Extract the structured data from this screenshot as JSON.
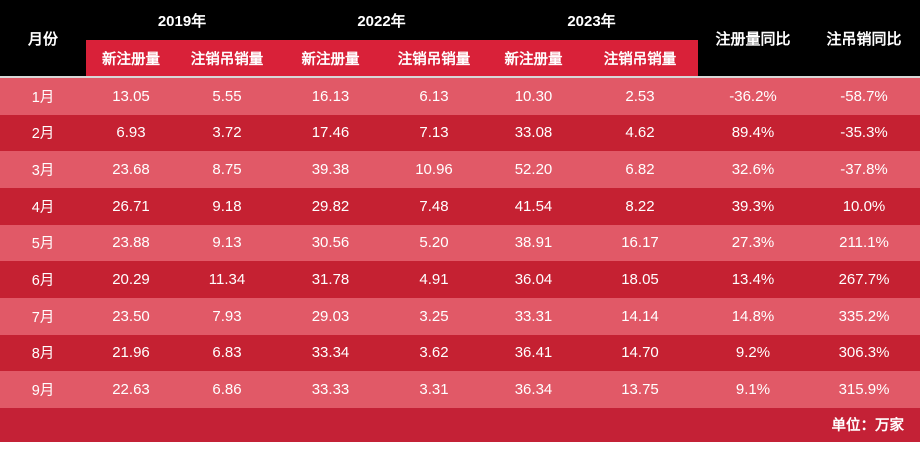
{
  "chart_data": {
    "type": "table",
    "unit_note": "单位：万家",
    "header": {
      "month": "月份",
      "year_groups": [
        {
          "year": "2019年",
          "subcolumns": [
            "新注册量",
            "注销吊销量"
          ]
        },
        {
          "year": "2022年",
          "subcolumns": [
            "新注册量",
            "注销吊销量"
          ]
        },
        {
          "year": "2023年",
          "subcolumns": [
            "新注册量",
            "注销吊销量"
          ]
        }
      ],
      "yoy": [
        "注册量同比",
        "注吊销同比"
      ]
    },
    "rows": [
      {
        "month": "1月",
        "values": [
          "13.05",
          "5.55",
          "16.13",
          "6.13",
          "10.30",
          "2.53",
          "-36.2%",
          "-58.7%"
        ]
      },
      {
        "month": "2月",
        "values": [
          "6.93",
          "3.72",
          "17.46",
          "7.13",
          "33.08",
          "4.62",
          "89.4%",
          "-35.3%"
        ]
      },
      {
        "month": "3月",
        "values": [
          "23.68",
          "8.75",
          "39.38",
          "10.96",
          "52.20",
          "6.82",
          "32.6%",
          "-37.8%"
        ]
      },
      {
        "month": "4月",
        "values": [
          "26.71",
          "9.18",
          "29.82",
          "7.48",
          "41.54",
          "8.22",
          "39.3%",
          "10.0%"
        ]
      },
      {
        "month": "5月",
        "values": [
          "23.88",
          "9.13",
          "30.56",
          "5.20",
          "38.91",
          "16.17",
          "27.3%",
          "211.1%"
        ]
      },
      {
        "month": "6月",
        "values": [
          "20.29",
          "11.34",
          "31.78",
          "4.91",
          "36.04",
          "18.05",
          "13.4%",
          "267.7%"
        ]
      },
      {
        "month": "7月",
        "values": [
          "23.50",
          "7.93",
          "29.03",
          "3.25",
          "33.31",
          "14.14",
          "14.8%",
          "335.2%"
        ]
      },
      {
        "month": "8月",
        "values": [
          "21.96",
          "6.83",
          "33.34",
          "3.62",
          "36.41",
          "14.70",
          "9.2%",
          "306.3%"
        ]
      },
      {
        "month": "9月",
        "values": [
          "22.63",
          "6.86",
          "33.33",
          "3.31",
          "36.34",
          "13.75",
          "9.1%",
          "315.9%"
        ]
      }
    ],
    "layout": {
      "row_striping": "odd months light red, even months dark red",
      "legend_position": "none",
      "grid": false
    }
  },
  "colors": {
    "header_bg": "#000000",
    "subheader_bg": "#d92139",
    "row_light": "#e15967",
    "row_dark": "#c52132",
    "footer_bg": "#c42136",
    "separator": "#d8d8d8",
    "text": "#ffffff"
  }
}
